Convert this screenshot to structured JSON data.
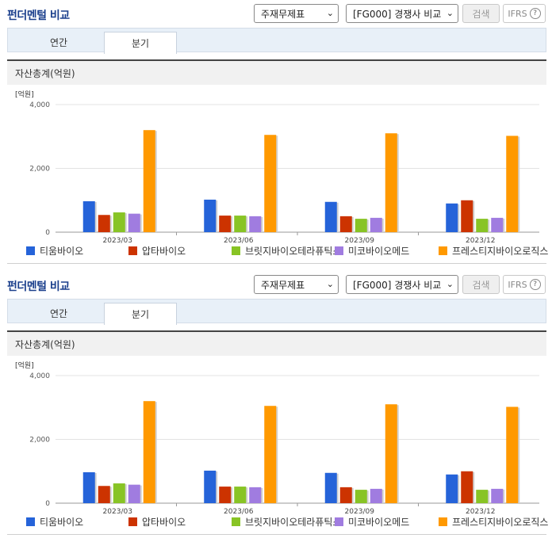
{
  "header": {
    "title": "펀더멘털 비교",
    "select_statement": "주재무제표",
    "select_compare": "[FG000] 경쟁사 비교",
    "search_label": "검색",
    "ifrs_label": "IFRS",
    "help_glyph": "?"
  },
  "tabs": [
    {
      "label": "연간",
      "active": false
    },
    {
      "label": "분기",
      "active": true
    }
  ],
  "section_title": "자산총계(억원)",
  "colors": {
    "티움바이오": "#2563d9",
    "압타바이오": "#cc3300",
    "브릿지바이오테라퓨틱스": "#88c425",
    "미코바이오메드": "#a07ce0",
    "프레스티지바이오로직스": "#ff9900"
  },
  "chart_data": {
    "type": "bar",
    "title": "",
    "ylabel": "[억원]",
    "xlabel": "",
    "ylim": [
      0,
      4000
    ],
    "yticks": [
      "4,000",
      "2,000",
      "0"
    ],
    "ytick_values": [
      4000,
      2000,
      0
    ],
    "grid": true,
    "legend_position": "bottom",
    "categories": [
      "2023/03",
      "2023/06",
      "2023/09",
      "2023/12"
    ],
    "series": [
      {
        "name": "티움바이오",
        "values": [
          970,
          1020,
          950,
          900
        ]
      },
      {
        "name": "압타바이오",
        "values": [
          540,
          520,
          500,
          1000
        ]
      },
      {
        "name": "브릿지바이오테라퓨틱스",
        "values": [
          620,
          520,
          420,
          420
        ]
      },
      {
        "name": "미코바이오메드",
        "values": [
          580,
          500,
          450,
          450
        ]
      },
      {
        "name": "프레스티지바이오로직스",
        "values": [
          3200,
          3050,
          3100,
          3020
        ]
      }
    ]
  },
  "legend_labels": [
    "티움바이오",
    "압타바이오",
    "브릿지바이오테라퓨틱스",
    "미코바이오메드",
    "프레스티지바이오로직스"
  ]
}
